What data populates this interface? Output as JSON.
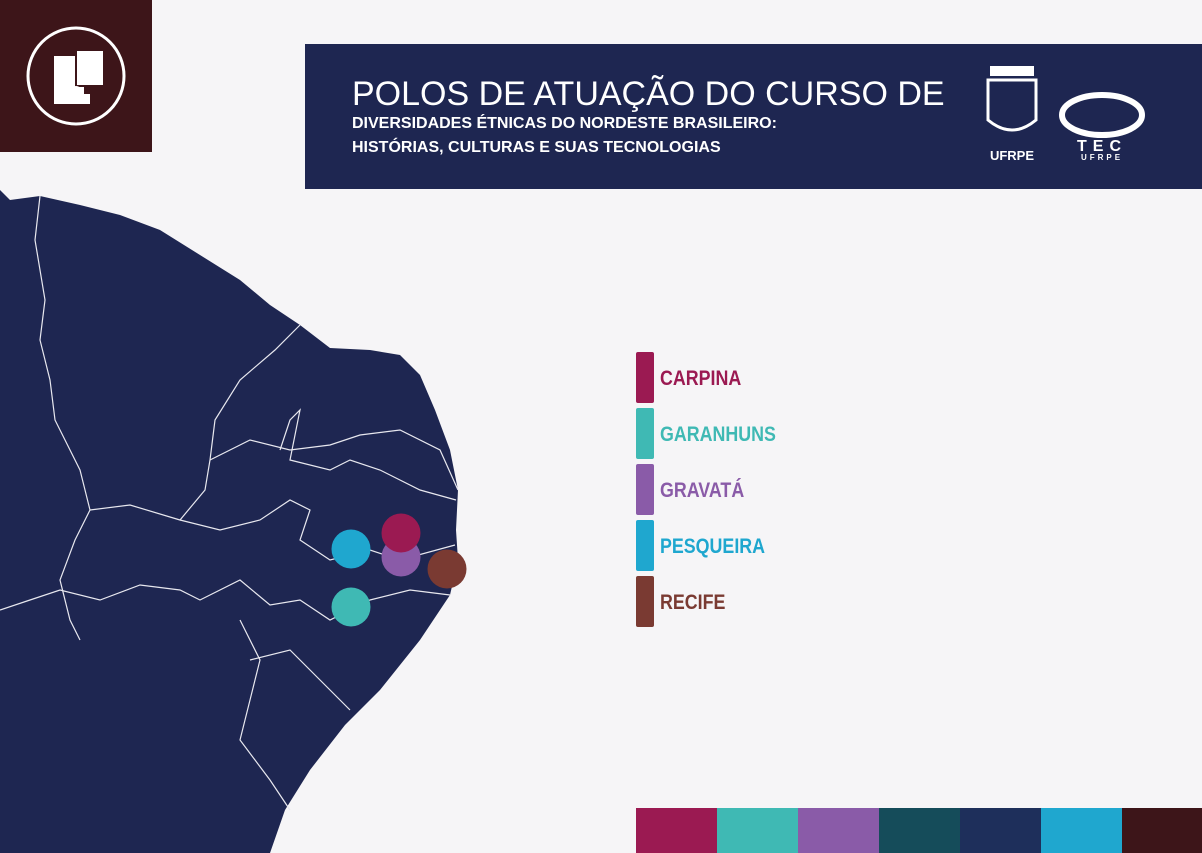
{
  "header": {
    "title_line1": "POLOS DE ATUAÇÃO DO CURSO DE",
    "title_line2": "DIVERSIDADES ÉTNICAS DO NORDESTE BRASILEIRO:",
    "title_line3": "HISTÓRIAS, CULTURAS E SUAS TECNOLOGIAS"
  },
  "logos": {
    "ufrpe": "UFRPE",
    "tec": "TEC",
    "tec_sub": "UFRPE"
  },
  "legend": [
    {
      "name": "CARPINA",
      "color": "#9b1a52"
    },
    {
      "name": "GARANHUNS",
      "color": "#3fb9b4"
    },
    {
      "name": "GRAVATÁ",
      "color": "#8a5ba8"
    },
    {
      "name": "PESQUEIRA",
      "color": "#1fa7cf"
    },
    {
      "name": "RECIFE",
      "color": "#7a3a32"
    }
  ]
}
